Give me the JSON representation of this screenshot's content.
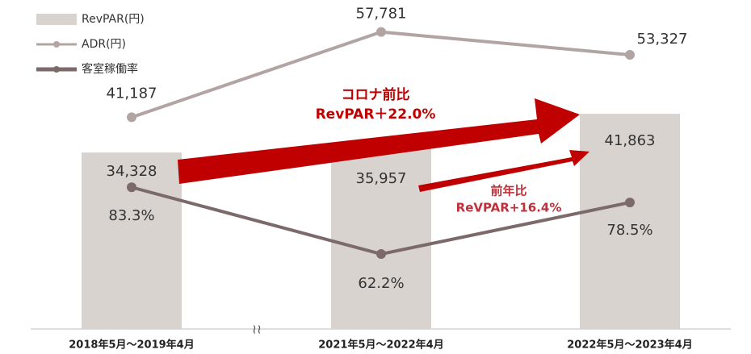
{
  "chart_data": {
    "type": "bar",
    "categories": [
      "2018年5月～2019年4月",
      "2021年5月～2022年4月",
      "2022年5月～2023年4月"
    ],
    "ylim": [
      0,
      64000
    ],
    "y2lim": [
      38.5,
      142.5
    ],
    "series": [
      {
        "name": "RevPAR(円)",
        "type": "bar",
        "color": "#d9d3cf",
        "values": [
          34328,
          35957,
          41863
        ],
        "value_labels": [
          "34,328",
          "35,957",
          "41,863"
        ]
      },
      {
        "name": "ADR(円)",
        "type": "line",
        "color": "#b3a4a4",
        "values": [
          41187,
          57781,
          53327
        ],
        "value_labels": [
          "41,187",
          "57,781",
          "53,327"
        ]
      },
      {
        "name": "客室稼働率",
        "type": "line",
        "axis": "y2",
        "color": "#7c6a6a",
        "values": [
          83.3,
          62.2,
          78.5
        ],
        "value_labels": [
          "83.3%",
          "62.2%",
          "78.5%"
        ]
      }
    ],
    "annotations": [
      "コロナ前比",
      "RevPAR＋22.0%",
      "前年比",
      "ReVPAR+16.4%"
    ]
  }
}
